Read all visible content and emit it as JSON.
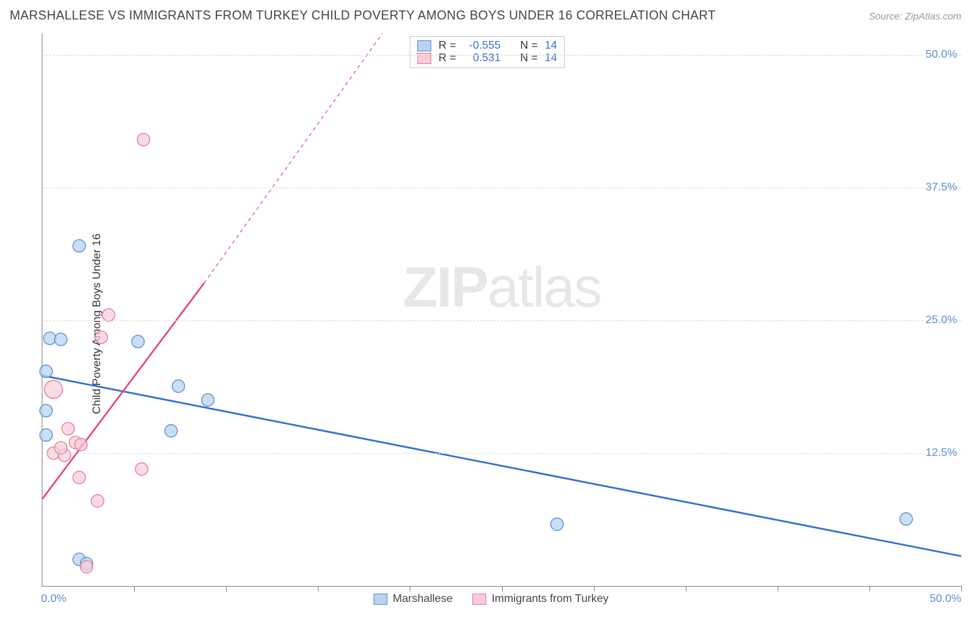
{
  "title": "MARSHALLESE VS IMMIGRANTS FROM TURKEY CHILD POVERTY AMONG BOYS UNDER 16 CORRELATION CHART",
  "source": "Source: ZipAtlas.com",
  "ylabel": "Child Poverty Among Boys Under 16",
  "watermark_a": "ZIP",
  "watermark_b": "atlas",
  "chart": {
    "type": "scatter-with-regression",
    "background_color": "#ffffff",
    "grid_color": "#dddddd",
    "axis_color": "#888888",
    "tick_label_color": "#5b8fd6",
    "xlim": [
      0,
      50
    ],
    "ylim": [
      0,
      52
    ],
    "x_min_label": "0.0%",
    "x_max_label": "50.0%",
    "y_ticks": [
      {
        "v": 12.5,
        "label": "12.5%"
      },
      {
        "v": 25.0,
        "label": "25.0%"
      },
      {
        "v": 37.5,
        "label": "37.5%"
      },
      {
        "v": 50.0,
        "label": "50.0%"
      }
    ],
    "x_tick_minor_step_pct": [
      5,
      10,
      15,
      20,
      25,
      30,
      35,
      40,
      45,
      50
    ],
    "series": [
      {
        "name": "Marshallese",
        "marker_fill": "#b9d4f0",
        "marker_stroke": "#5b8fd6",
        "marker_opacity": 0.75,
        "marker_radius": 9,
        "line_color": "#2f6fd0",
        "line_width": 2.5,
        "r": "-0.555",
        "n": "14",
        "trend": {
          "x1": 0,
          "y1": 19.8,
          "x2": 50,
          "y2": 2.8
        },
        "points": [
          {
            "x": 2.0,
            "y": 32.0
          },
          {
            "x": 0.4,
            "y": 23.3
          },
          {
            "x": 1.0,
            "y": 23.2
          },
          {
            "x": 5.2,
            "y": 23.0
          },
          {
            "x": 0.2,
            "y": 20.2
          },
          {
            "x": 7.4,
            "y": 18.8
          },
          {
            "x": 9.0,
            "y": 17.5
          },
          {
            "x": 0.2,
            "y": 16.5
          },
          {
            "x": 7.0,
            "y": 14.6
          },
          {
            "x": 0.2,
            "y": 14.2
          },
          {
            "x": 28.0,
            "y": 5.8
          },
          {
            "x": 47.0,
            "y": 6.3
          },
          {
            "x": 2.0,
            "y": 2.5
          },
          {
            "x": 2.4,
            "y": 2.1
          }
        ]
      },
      {
        "name": "Immigrants from Turkey",
        "marker_fill": "#f6cdd7",
        "marker_stroke": "#e77a9a",
        "marker_opacity": 0.7,
        "marker_radius": 9,
        "line_color": "#e24b78",
        "line_width": 2.5,
        "r": "0.531",
        "n": "14",
        "trend_solid": {
          "x1": 0,
          "y1": 8.2,
          "x2": 8.8,
          "y2": 28.5
        },
        "trend_dashed": {
          "x1": 8.8,
          "y1": 28.5,
          "x2": 18.5,
          "y2": 52.0
        },
        "points": [
          {
            "x": 5.5,
            "y": 42.0
          },
          {
            "x": 3.6,
            "y": 25.5
          },
          {
            "x": 3.2,
            "y": 23.4
          },
          {
            "x": 0.6,
            "y": 18.5,
            "r": 13
          },
          {
            "x": 1.4,
            "y": 14.8
          },
          {
            "x": 1.8,
            "y": 13.5
          },
          {
            "x": 2.1,
            "y": 13.3
          },
          {
            "x": 0.6,
            "y": 12.5
          },
          {
            "x": 1.2,
            "y": 12.3
          },
          {
            "x": 5.4,
            "y": 11.0
          },
          {
            "x": 2.0,
            "y": 10.2
          },
          {
            "x": 3.0,
            "y": 8.0
          },
          {
            "x": 2.4,
            "y": 1.8
          },
          {
            "x": 1.0,
            "y": 13.0
          }
        ]
      }
    ],
    "legend_bottom": [
      {
        "swatch_fill": "#b9d4f0",
        "swatch_stroke": "#5b8fd6",
        "label": "Marshallese"
      },
      {
        "swatch_fill": "#f6cdd7",
        "swatch_stroke": "#e77a9a",
        "label": "Immigrants from Turkey"
      }
    ],
    "legend_top": [
      {
        "swatch_fill": "#b9d4f0",
        "swatch_stroke": "#5b8fd6",
        "r_label": "R =",
        "r_val": "-0.555",
        "n_label": "N =",
        "n_val": "14"
      },
      {
        "swatch_fill": "#f6cdd7",
        "swatch_stroke": "#e77a9a",
        "r_label": "R =",
        "r_val": "0.531",
        "n_label": "N =",
        "n_val": "14"
      }
    ]
  }
}
